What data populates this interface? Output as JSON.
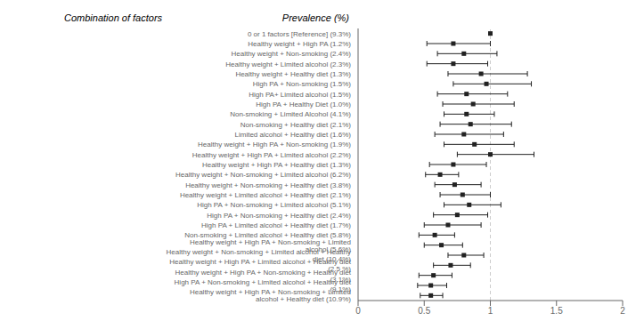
{
  "chart_data": {
    "type": "forest",
    "annotations": [
      "Combination of factors",
      "Prevalence (%)"
    ],
    "categories": [
      "0 or 1 factors [Reference] (9.3%)",
      "Healthy weight + High PA (1.2%)",
      "Healthy weight + Non-smoking (2.4%)",
      "Healthy weight + Limited alcohol (2.3%)",
      "Healthy weight + Healthy diet (1.3%)",
      "High PA + Non-smoking (1.5%)",
      "High PA+ Limited alcohol (1.5%)",
      "High PA + Healthy Diet (1.0%)",
      "Non-smoking + Limited Alcohol (4.1%)",
      "Non-smoking + Healthy diet (2.1%)",
      "Limited alcohol + Healthy diet (1.6%)",
      "Healthy weight + High PA + Non-smoking (1.9%)",
      "Healthy weight + High PA + Limited alcohol (2.2%)",
      "Healthy weight + High PA + Healthy diet (1.3%)",
      "Healthy weight + Non-smoking + Limited alcohol (6.2%)",
      "Healthy weight + Non-smoking + Healthy diet (3.8%)",
      "Healthy weight + Limited alcohol + Healthy diet (2.1%)",
      "High PA + Non-smoking + Limited alcohol (5.1%)",
      "High PA + Non-smoking + Healthy diet (2.4%)",
      "High PA + Limited alcohol + Healthy diet (1.7%)",
      "Non-smoking + Limited alcohol + Healthy diet (5.8%)",
      "Healthy weight + High PA + Non-smoking + Limited alcohol (5.6%)",
      "Healthy weight + Non-smoking + Limited alcohol + Healthy diet (10.4%)",
      "Healthy weight + High PA + Limited alcohol + Healthy diet (2.5 %)",
      "Healthy weight + High PA + Non-smoking + Healthy diet (3.1%)",
      "High PA + Non-smoking + Limited alcohol + Healthy diet (9.1%)",
      "Healthy weight + High PA + Non-smoking + Limited alcohol + Healthy diet (10.9%)"
    ],
    "values": [
      1.0,
      0.72,
      0.8,
      0.72,
      0.93,
      0.97,
      0.82,
      0.87,
      0.82,
      0.85,
      0.8,
      0.88,
      1.0,
      0.72,
      0.62,
      0.73,
      0.79,
      0.84,
      0.75,
      0.68,
      0.58,
      0.63,
      0.8,
      0.7,
      0.57,
      0.55,
      0.55
    ],
    "ci_low": [
      null,
      0.52,
      0.6,
      0.52,
      0.68,
      0.72,
      0.6,
      0.64,
      0.65,
      0.62,
      0.58,
      0.65,
      0.75,
      0.54,
      0.51,
      0.58,
      0.62,
      0.65,
      0.57,
      0.5,
      0.46,
      0.5,
      0.68,
      0.57,
      0.46,
      0.45,
      0.47
    ],
    "ci_high": [
      null,
      1.0,
      1.05,
      0.98,
      1.28,
      1.31,
      1.13,
      1.18,
      1.03,
      1.16,
      1.1,
      1.18,
      1.33,
      0.97,
      0.76,
      0.93,
      1.0,
      1.08,
      0.98,
      0.93,
      0.73,
      0.79,
      0.95,
      0.85,
      0.71,
      0.67,
      0.64
    ],
    "xlim": [
      0.0,
      2.0
    ],
    "xticks": [
      0,
      0.5,
      1,
      1.5,
      2
    ],
    "reference_line": 1,
    "color": "#222222"
  }
}
